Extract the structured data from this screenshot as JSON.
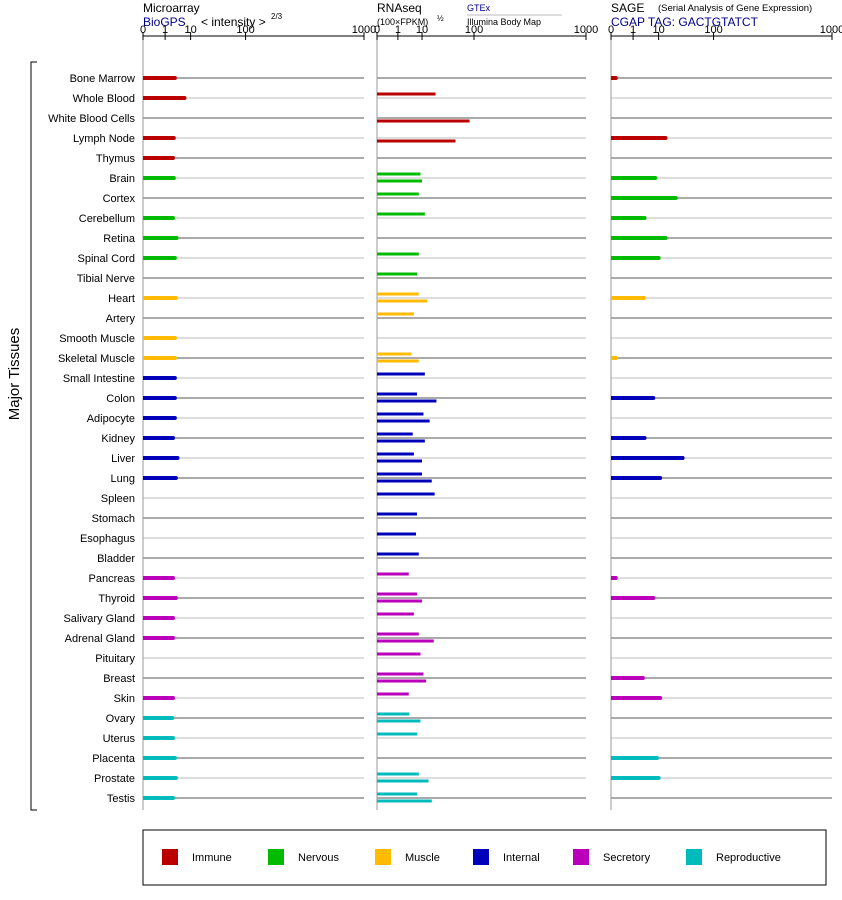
{
  "y_axis_label": "Major Tissues",
  "tissues": [
    "Bone Marrow",
    "Whole Blood",
    "White Blood Cells",
    "Lymph Node",
    "Thymus",
    "Brain",
    "Cortex",
    "Cerebellum",
    "Retina",
    "Spinal Cord",
    "Tibial Nerve",
    "Heart",
    "Artery",
    "Smooth Muscle",
    "Skeletal Muscle",
    "Small Intestine",
    "Colon",
    "Adipocyte",
    "Kidney",
    "Liver",
    "Lung",
    "Spleen",
    "Stomach",
    "Esophagus",
    "Bladder",
    "Pancreas",
    "Thyroid",
    "Salivary Gland",
    "Adrenal Gland",
    "Pituitary",
    "Breast",
    "Skin",
    "Ovary",
    "Uterus",
    "Placenta",
    "Prostate",
    "Testis"
  ],
  "tissue_groups": [
    "Immune",
    "Immune",
    "Immune",
    "Immune",
    "Immune",
    "Nervous",
    "Nervous",
    "Nervous",
    "Nervous",
    "Nervous",
    "Nervous",
    "Muscle",
    "Muscle",
    "Muscle",
    "Muscle",
    "Internal",
    "Internal",
    "Internal",
    "Internal",
    "Internal",
    "Internal",
    "Internal",
    "Internal",
    "Internal",
    "Internal",
    "Secretory",
    "Secretory",
    "Secretory",
    "Secretory",
    "Secretory",
    "Secretory",
    "Secretory",
    "Reproductive",
    "Reproductive",
    "Reproductive",
    "Reproductive",
    "Reproductive"
  ],
  "colors": {
    "Immune": "#bb0000",
    "Nervous": "#00bb00",
    "Muscle": "#ffbb00",
    "Internal": "#0000bb",
    "Secretory": "#bb00bb",
    "Reproductive": "#00bbbb"
  },
  "legend": [
    "Immune",
    "Nervous",
    "Muscle",
    "Internal",
    "Secretory",
    "Reproductive"
  ],
  "panels": {
    "microarray": {
      "title": "Microarray",
      "source": "BioGPS",
      "unit_label": "< intensity >",
      "unit_exponent": "2/3",
      "ticks": [
        "0",
        "1",
        "10",
        "100",
        "1000"
      ]
    },
    "rnaseq": {
      "title": "RNAseq",
      "unit_label": "(100×FPKM)",
      "unit_exponent": "½",
      "source_top": "GTEx",
      "source_bottom": "Illumina Body Map",
      "ticks": [
        "0",
        "1",
        "10",
        "100",
        "1000"
      ]
    },
    "sage": {
      "title": "SAGE",
      "subtitle": "(Serial Analysis of Gene Expression)",
      "tag": "CGAP TAG: GACTGTATCT",
      "ticks": [
        "0",
        "1",
        "10",
        "100",
        "1000"
      ]
    }
  },
  "chart_data": [
    {
      "type": "bar",
      "title": "Microarray",
      "scale": "power 1/3 (0–1000)",
      "xlim": [
        0,
        1000
      ],
      "categories": [
        "Bone Marrow",
        "Whole Blood",
        "White Blood Cells",
        "Lymph Node",
        "Thymus",
        "Brain",
        "Cortex",
        "Cerebellum",
        "Retina",
        "Spinal Cord",
        "Tibial Nerve",
        "Heart",
        "Artery",
        "Smooth Muscle",
        "Skeletal Muscle",
        "Small Intestine",
        "Colon",
        "Adipocyte",
        "Kidney",
        "Liver",
        "Lung",
        "Spleen",
        "Stomach",
        "Esophagus",
        "Bladder",
        "Pancreas",
        "Thyroid",
        "Salivary Gland",
        "Adrenal Gland",
        "Pituitary",
        "Breast",
        "Skin",
        "Ovary",
        "Uterus",
        "Placenta",
        "Prostate",
        "Testis"
      ],
      "values": [
        3.0,
        6.6,
        null,
        2.7,
        2.5,
        2.7,
        null,
        2.5,
        3.5,
        3.0,
        null,
        3.3,
        null,
        3.0,
        3.0,
        3.0,
        3.0,
        3.0,
        2.5,
        3.8,
        3.3,
        null,
        null,
        null,
        null,
        2.5,
        3.3,
        2.5,
        2.5,
        null,
        null,
        2.5,
        2.3,
        2.5,
        3.0,
        3.3,
        2.5
      ]
    },
    {
      "type": "bar",
      "title": "RNAseq",
      "scale": "power 1/3 (0–1000)",
      "xlim": [
        0,
        1000
      ],
      "categories": [
        "Bone Marrow",
        "Whole Blood",
        "White Blood Cells",
        "Lymph Node",
        "Thymus",
        "Brain",
        "Cortex",
        "Cerebellum",
        "Retina",
        "Spinal Cord",
        "Tibial Nerve",
        "Heart",
        "Artery",
        "Smooth Muscle",
        "Skeletal Muscle",
        "Small Intestine",
        "Colon",
        "Adipocyte",
        "Kidney",
        "Liver",
        "Lung",
        "Spleen",
        "Stomach",
        "Esophagus",
        "Bladder",
        "Pancreas",
        "Thyroid",
        "Salivary Gland",
        "Adrenal Gland",
        "Pituitary",
        "Breast",
        "Skin",
        "Ovary",
        "Uterus",
        "Placenta",
        "Prostate",
        "Testis"
      ],
      "series": [
        {
          "name": "GTEx",
          "values": [
            null,
            22,
            null,
            null,
            null,
            9,
            8,
            12,
            null,
            8,
            7,
            8,
            5.5,
            null,
            4.5,
            12,
            7,
            11,
            5,
            5.5,
            10,
            21,
            7,
            6.5,
            8,
            3.5,
            7,
            5.5,
            8,
            9,
            11,
            3.5,
            3.7,
            7,
            null,
            8,
            7
          ]
        },
        {
          "name": "Illumina Body Map",
          "values": [
            null,
            null,
            87,
            53,
            null,
            10,
            null,
            null,
            null,
            null,
            null,
            14,
            null,
            null,
            8,
            null,
            23,
            16,
            12,
            10,
            18,
            null,
            null,
            null,
            null,
            null,
            10,
            null,
            20,
            null,
            13,
            null,
            9,
            null,
            null,
            15,
            18
          ]
        }
      ]
    },
    {
      "type": "bar",
      "title": "SAGE",
      "scale": "power 1/3 (0–1000)",
      "xlim": [
        0,
        1000
      ],
      "categories": [
        "Bone Marrow",
        "Whole Blood",
        "White Blood Cells",
        "Lymph Node",
        "Thymus",
        "Brain",
        "Cortex",
        "Cerebellum",
        "Retina",
        "Spinal Cord",
        "Tibial Nerve",
        "Heart",
        "Artery",
        "Smooth Muscle",
        "Skeletal Muscle",
        "Small Intestine",
        "Colon",
        "Adipocyte",
        "Kidney",
        "Liver",
        "Lung",
        "Spleen",
        "Stomach",
        "Esophagus",
        "Bladder",
        "Pancreas",
        "Thyroid",
        "Salivary Gland",
        "Adrenal Gland",
        "Pituitary",
        "Breast",
        "Skin",
        "Ovary",
        "Uterus",
        "Placenta",
        "Prostate",
        "Testis"
      ],
      "values": [
        0.01,
        null,
        null,
        15,
        null,
        8,
        25,
        3.5,
        15,
        10,
        null,
        3.3,
        null,
        null,
        0.01,
        null,
        7,
        null,
        3.5,
        34,
        11,
        null,
        null,
        null,
        null,
        0.01,
        7,
        null,
        null,
        null,
        3,
        11,
        null,
        null,
        9,
        10,
        null
      ]
    }
  ]
}
